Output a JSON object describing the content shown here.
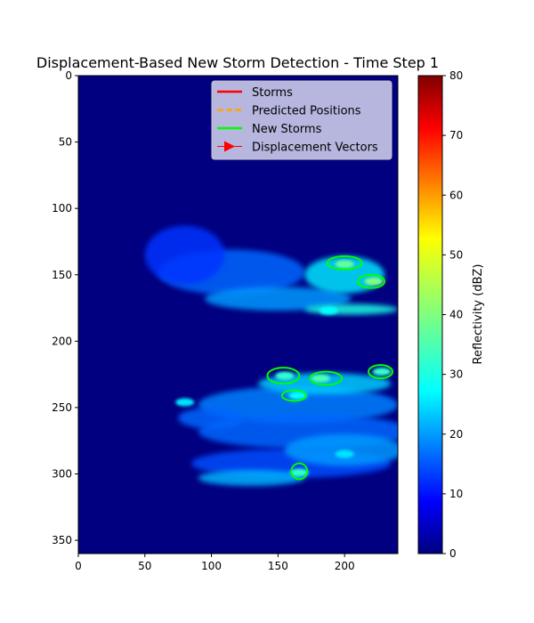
{
  "chart_data": {
    "type": "heatmap",
    "title": "Displacement-Based New Storm Detection - Time Step 1",
    "xlabel": "",
    "ylabel": "",
    "xlim": [
      0,
      240
    ],
    "ylim": [
      360,
      0
    ],
    "x_ticks": [
      0,
      50,
      100,
      150,
      200
    ],
    "y_ticks": [
      0,
      50,
      100,
      150,
      200,
      250,
      300,
      350
    ],
    "colorbar": {
      "label": "Reflectivity (dBZ)",
      "range": [
        0,
        80
      ],
      "ticks": [
        0,
        10,
        20,
        30,
        40,
        50,
        60,
        70,
        80
      ],
      "colormap": "jet"
    },
    "legend": {
      "placement": "upper-right",
      "entries": [
        {
          "label": "Storms",
          "style": "line",
          "color": "#ff0000"
        },
        {
          "label": "Predicted Positions",
          "style": "dashed",
          "color": "#ffa500"
        },
        {
          "label": "New Storms",
          "style": "line",
          "color": "#00ff00"
        },
        {
          "label": "Displacement Vectors",
          "style": "arrow",
          "color": "#ff0000"
        }
      ]
    },
    "reflectivity_regions": [
      {
        "cx": 115,
        "cy": 148,
        "rx": 55,
        "ry": 17,
        "value": 18
      },
      {
        "cx": 80,
        "cy": 135,
        "rx": 30,
        "ry": 22,
        "value": 14
      },
      {
        "cx": 150,
        "cy": 168,
        "rx": 55,
        "ry": 9,
        "value": 22
      },
      {
        "cx": 200,
        "cy": 150,
        "rx": 30,
        "ry": 14,
        "value": 28
      },
      {
        "cx": 205,
        "cy": 176,
        "rx": 35,
        "ry": 4,
        "value": 32
      },
      {
        "cx": 165,
        "cy": 248,
        "rx": 75,
        "ry": 14,
        "value": 20
      },
      {
        "cx": 185,
        "cy": 232,
        "rx": 50,
        "ry": 8,
        "value": 26
      },
      {
        "cx": 170,
        "cy": 268,
        "rx": 80,
        "ry": 13,
        "value": 18
      },
      {
        "cx": 160,
        "cy": 292,
        "rx": 75,
        "ry": 11,
        "value": 16
      },
      {
        "cx": 200,
        "cy": 282,
        "rx": 45,
        "ry": 12,
        "value": 22
      },
      {
        "cx": 130,
        "cy": 303,
        "rx": 40,
        "ry": 6,
        "value": 24
      },
      {
        "cx": 100,
        "cy": 258,
        "rx": 25,
        "ry": 8,
        "value": 18
      }
    ],
    "hotspots": [
      {
        "x": 200,
        "y": 142,
        "value": 38
      },
      {
        "x": 222,
        "y": 155,
        "value": 40
      },
      {
        "x": 155,
        "y": 226,
        "value": 34
      },
      {
        "x": 182,
        "y": 228,
        "value": 36
      },
      {
        "x": 228,
        "y": 223,
        "value": 34
      },
      {
        "x": 165,
        "y": 241,
        "value": 30
      },
      {
        "x": 166,
        "y": 299,
        "value": 34
      },
      {
        "x": 80,
        "y": 246,
        "value": 28
      },
      {
        "x": 188,
        "y": 177,
        "value": 30
      },
      {
        "x": 200,
        "y": 285,
        "value": 28
      }
    ],
    "new_storms": [
      {
        "cx": 200,
        "cy": 141,
        "rx": 13,
        "ry": 5
      },
      {
        "cx": 220,
        "cy": 155,
        "rx": 10,
        "ry": 5
      },
      {
        "cx": 154,
        "cy": 226,
        "rx": 12,
        "ry": 6
      },
      {
        "cx": 186,
        "cy": 228,
        "rx": 12,
        "ry": 5
      },
      {
        "cx": 227,
        "cy": 223,
        "rx": 9,
        "ry": 5
      },
      {
        "cx": 162,
        "cy": 241,
        "rx": 9,
        "ry": 4
      },
      {
        "cx": 166,
        "cy": 298,
        "rx": 6,
        "ry": 6
      }
    ]
  }
}
